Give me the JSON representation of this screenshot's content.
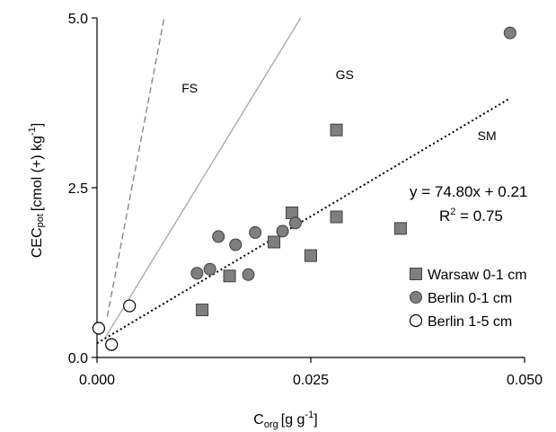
{
  "chart_data": {
    "type": "scatter",
    "xlabel_main": "C",
    "xlabel_sub": "org",
    "xlabel_unit": "[g g",
    "xlabel_sup": "-1",
    "xlabel_end": "]",
    "ylabel_main": "CEC",
    "ylabel_sub": "pot",
    "ylabel_unit": "[cmol (+) kg",
    "ylabel_sup": "-1",
    "ylabel_end": "]",
    "xlim": [
      0,
      0.05
    ],
    "ylim": [
      0,
      5
    ],
    "x_ticks": [
      {
        "value": 0,
        "label": "0.000"
      },
      {
        "value": 0.025,
        "label": "0.025"
      },
      {
        "value": 0.05,
        "label": "0.050"
      }
    ],
    "y_ticks": [
      {
        "value": 0,
        "label": "0.0"
      },
      {
        "value": 2.5,
        "label": "2.5"
      },
      {
        "value": 5,
        "label": "5.0"
      }
    ],
    "series": [
      {
        "name": "Warsaw 0-1 cm",
        "marker": "square",
        "color": "#7f7f7f",
        "points": [
          [
            0.0123,
            0.7
          ],
          [
            0.0155,
            1.2
          ],
          [
            0.0207,
            1.7
          ],
          [
            0.0228,
            2.13
          ],
          [
            0.025,
            1.5
          ],
          [
            0.028,
            3.35
          ],
          [
            0.028,
            2.07
          ],
          [
            0.0355,
            1.9
          ]
        ]
      },
      {
        "name": "Berlin 0-1 cm",
        "marker": "circle",
        "color": "#7f7f7f",
        "points": [
          [
            0.0117,
            1.24
          ],
          [
            0.0132,
            1.3
          ],
          [
            0.0142,
            1.78
          ],
          [
            0.0162,
            1.66
          ],
          [
            0.0177,
            1.22
          ],
          [
            0.0185,
            1.84
          ],
          [
            0.0217,
            1.86
          ],
          [
            0.0232,
            1.98
          ],
          [
            0.0483,
            4.78
          ]
        ]
      },
      {
        "name": "Berlin 1-5 cm",
        "marker": "circle-open",
        "color": "#ffffff",
        "points": [
          [
            0.0002,
            0.43
          ],
          [
            0.0017,
            0.19
          ],
          [
            0.0038,
            0.76
          ]
        ]
      }
    ],
    "reference_lines": [
      {
        "label": "FS",
        "style": "dashed",
        "color": "#7f7f7f",
        "points": [
          [
            0.0012,
            0.6
          ],
          [
            0.008,
            5.1
          ]
        ]
      },
      {
        "label": "GS",
        "style": "solid",
        "color": "#a6a6a6",
        "points": [
          [
            0.001,
            0.3
          ],
          [
            0.0243,
            5.1
          ]
        ]
      },
      {
        "label": "SM",
        "style": "dotted",
        "color": "#000000",
        "points": [
          [
            0,
            0.21
          ],
          [
            0.0482,
            3.81
          ]
        ]
      }
    ],
    "curve_labels": [
      {
        "text": "FS",
        "x": 0.0099,
        "y": 3.9
      },
      {
        "text": "GS",
        "x": 0.0279,
        "y": 4.1
      },
      {
        "text": "SM",
        "x": 0.0445,
        "y": 3.2
      }
    ],
    "annotation": {
      "equation": "y = 74.80x + 0.21",
      "r2_prefix": "R",
      "r2_sup": "2",
      "r2_suffix": " = 0.75"
    },
    "legend": {
      "position": "bottom-right"
    },
    "grid": false
  }
}
